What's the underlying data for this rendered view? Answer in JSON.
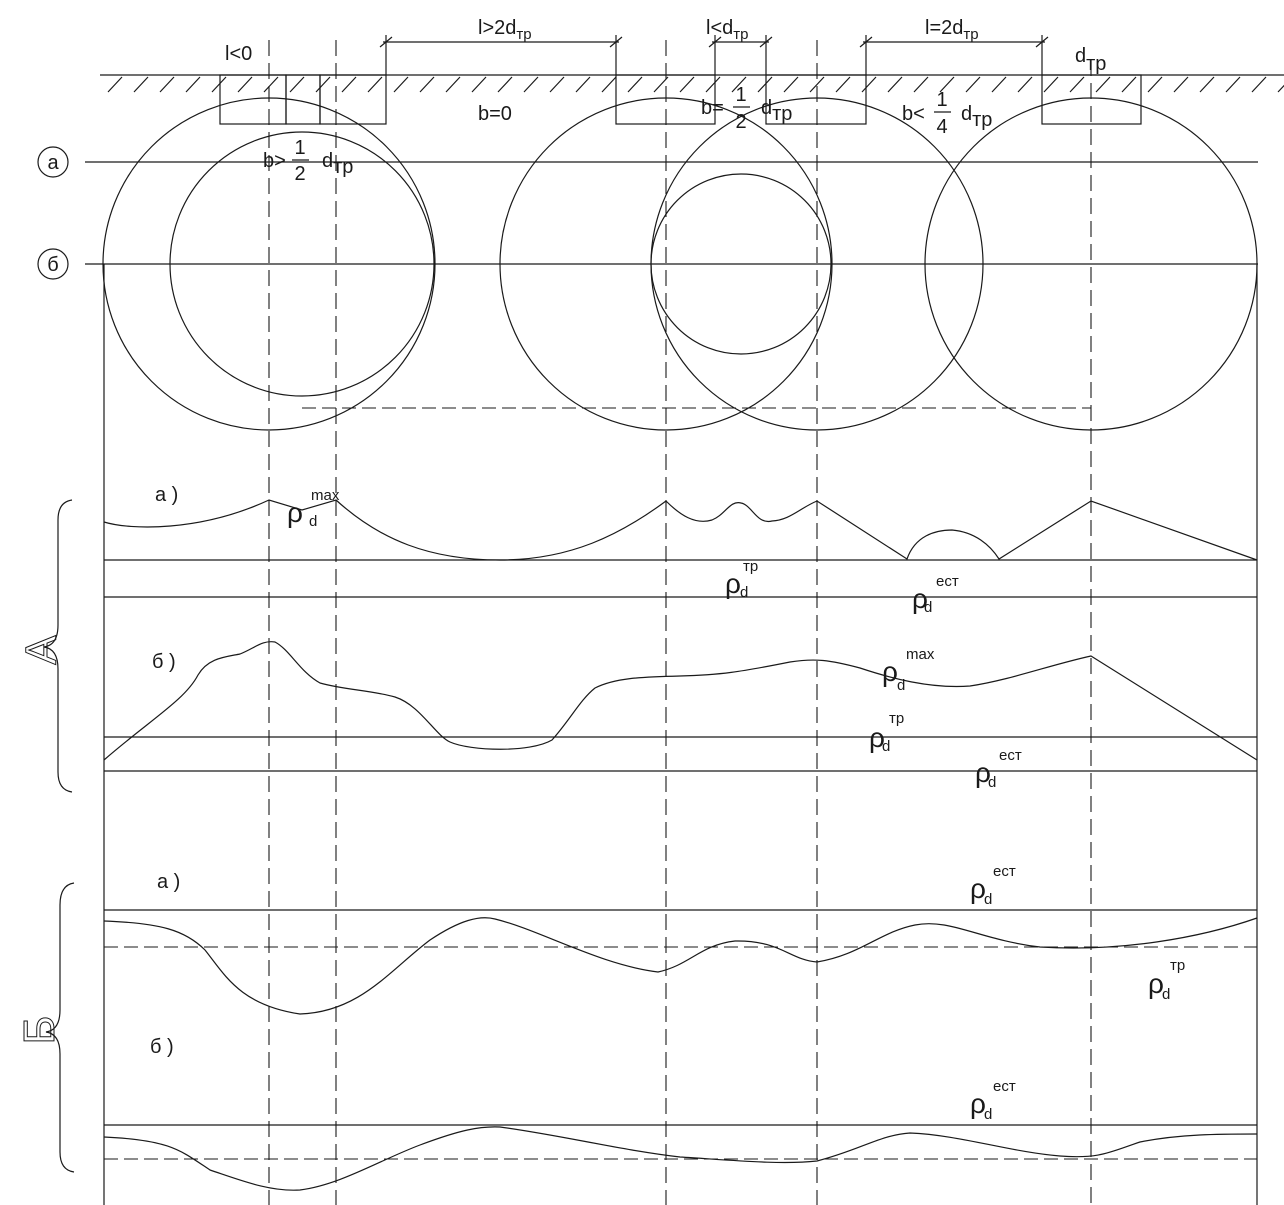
{
  "top_labels": {
    "l_neg": "l<0",
    "l_gt": "l>2d",
    "l_gt_sub": "тр",
    "l_lt": "l<d",
    "l_lt_sub": "тр",
    "l_eq": "l=2d",
    "l_eq_sub": "тр",
    "d_tr": "d",
    "d_tr_sub": "тр"
  },
  "b_labels": {
    "b_gt_prefix": "b>",
    "b_zero": "b=0",
    "b_eq_prefix": "b=",
    "b_lt_prefix": "b<",
    "frac_num_1": "1",
    "frac_den_2": "2",
    "frac_num_1b": "1",
    "frac_den_2b": "2",
    "frac_num_1c": "1",
    "frac_den_4": "4",
    "d": "d",
    "sub_tr": "тр"
  },
  "level_labels": {
    "a": "а",
    "b": "б"
  },
  "section_labels": {
    "A": "А",
    "B": "Б",
    "sub_a": "а )",
    "sub_b": "б )"
  },
  "rho_labels": {
    "rho": "ρ",
    "d": "d",
    "max": "max",
    "tr": "тр",
    "est": "ест"
  }
}
